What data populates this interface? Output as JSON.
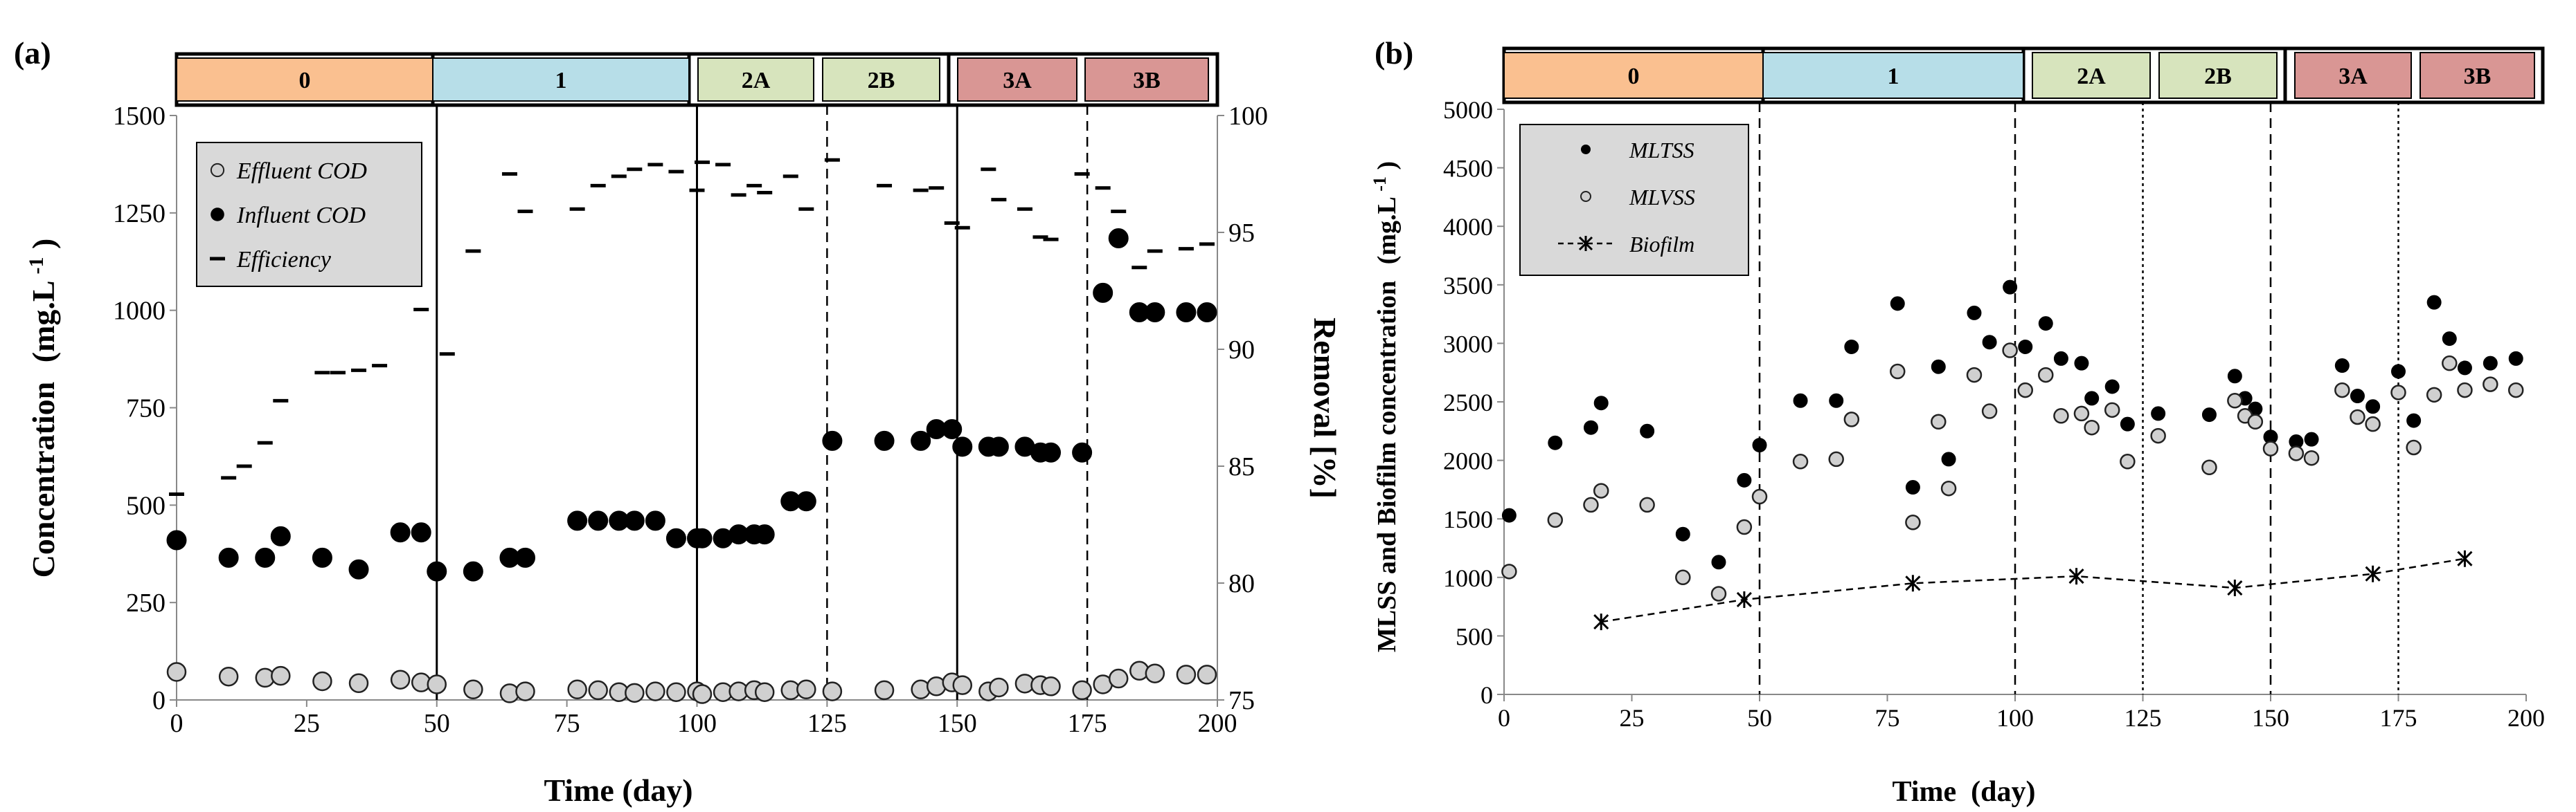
{
  "colors": {
    "phase_0": "#fac090",
    "phase_1": "#b7dee8",
    "phase_2": "#d7e4bd",
    "phase_3": "#d99694",
    "marker_dark": "#000000",
    "marker_light": "#d0d0d0"
  },
  "chart_data": [
    {
      "panel_label": "(a)",
      "type": "scatter",
      "title": "",
      "xlabel": "Time (day)",
      "ylabel": "Concentration",
      "ylabel_units": "(mg.L",
      "ylabel_sup": "-1",
      "ylabel_close": ")",
      "y2label": "Removal [%]",
      "xlim": [
        0,
        200
      ],
      "ylim": [
        0,
        1500
      ],
      "y2lim": [
        75,
        100
      ],
      "x_ticks": [
        "0",
        "25",
        "50",
        "75",
        "100",
        "125",
        "150",
        "175",
        "200"
      ],
      "y_ticks": [
        "0",
        "250",
        "500",
        "750",
        "1000",
        "1250",
        "1500"
      ],
      "y2_ticks": [
        "75",
        "80",
        "85",
        "90",
        "95",
        "100"
      ],
      "phases": [
        {
          "label": "0",
          "color": "phase_0"
        },
        {
          "label": "1",
          "color": "phase_1"
        },
        {
          "label": "2A",
          "color": "phase_2"
        },
        {
          "label": "2B",
          "color": "phase_2"
        },
        {
          "label": "3A",
          "color": "phase_3"
        },
        {
          "label": "3B",
          "color": "phase_3"
        }
      ],
      "phase_lines": [
        {
          "x": 50,
          "style": "solid"
        },
        {
          "x": 100,
          "style": "solid"
        },
        {
          "x": 125,
          "style": "dashed"
        },
        {
          "x": 150,
          "style": "solid"
        },
        {
          "x": 175,
          "style": "dashed"
        }
      ],
      "legend_position": "top-left",
      "series": [
        {
          "name": "Effluent COD",
          "marker": "circle-light",
          "axis": "left",
          "x": [
            0,
            10,
            17,
            20,
            28,
            35,
            43,
            47,
            50,
            57,
            64,
            67,
            77,
            81,
            85,
            88,
            92,
            96,
            100,
            101,
            105,
            108,
            111,
            113,
            118,
            121,
            126,
            136,
            143,
            146,
            149,
            151,
            156,
            158,
            163,
            166,
            168,
            174,
            178,
            181,
            185,
            188,
            194,
            198
          ],
          "y": [
            72,
            60,
            57,
            62,
            48,
            43,
            52,
            45,
            40,
            27,
            17,
            22,
            27,
            25,
            20,
            18,
            22,
            20,
            22,
            15,
            20,
            22,
            25,
            20,
            25,
            27,
            22,
            25,
            27,
            35,
            45,
            38,
            22,
            32,
            42,
            38,
            35,
            25,
            40,
            55,
            75,
            68,
            65,
            65
          ]
        },
        {
          "name": "Influent COD",
          "marker": "circle-dark",
          "axis": "left",
          "x": [
            0,
            10,
            17,
            20,
            28,
            35,
            43,
            47,
            50,
            57,
            64,
            67,
            77,
            81,
            85,
            88,
            92,
            96,
            100,
            101,
            105,
            108,
            111,
            113,
            118,
            121,
            126,
            136,
            143,
            146,
            149,
            151,
            156,
            158,
            163,
            166,
            168,
            174,
            178,
            181,
            185,
            188,
            194,
            198
          ],
          "y": [
            410,
            365,
            365,
            420,
            365,
            335,
            430,
            430,
            330,
            330,
            365,
            365,
            460,
            460,
            460,
            460,
            460,
            415,
            415,
            415,
            415,
            425,
            425,
            425,
            510,
            510,
            665,
            665,
            665,
            695,
            695,
            650,
            650,
            650,
            650,
            635,
            635,
            635,
            1045,
            1185,
            995,
            995,
            995,
            995
          ]
        },
        {
          "name": "Efficiency",
          "marker": "dash",
          "axis": "right",
          "x": [
            0,
            10,
            13,
            17,
            20,
            28,
            31,
            35,
            39,
            47,
            52,
            57,
            64,
            67,
            77,
            81,
            85,
            88,
            92,
            96,
            100,
            101,
            105,
            108,
            111,
            113,
            118,
            121,
            126,
            136,
            143,
            146,
            149,
            151,
            156,
            158,
            163,
            166,
            168,
            174,
            178,
            181,
            185,
            188,
            194,
            198
          ],
          "y": [
            83.8,
            84.5,
            85.0,
            86.0,
            87.8,
            89.0,
            89.0,
            89.1,
            89.3,
            91.7,
            89.8,
            94.2,
            97.5,
            95.9,
            96.0,
            97.0,
            97.4,
            97.7,
            97.9,
            97.6,
            96.8,
            98.0,
            97.9,
            96.6,
            97.0,
            96.7,
            97.4,
            96.0,
            98.1,
            97.0,
            96.8,
            96.9,
            95.4,
            95.2,
            97.7,
            96.4,
            96.0,
            94.8,
            94.7,
            97.5,
            96.9,
            95.9,
            93.5,
            94.2,
            94.3,
            94.5
          ]
        }
      ],
      "legend": [
        "Effluent COD",
        "Influent COD",
        "Efficiency"
      ]
    },
    {
      "panel_label": "(b)",
      "type": "scatter",
      "title": "",
      "xlabel": "Time  (day)",
      "ylabel": "MLSS and Biofilm concentration",
      "ylabel_units": "(mg.L",
      "ylabel_sup": "-1",
      "ylabel_close": ")",
      "xlim": [
        0,
        200
      ],
      "ylim": [
        0,
        5000
      ],
      "x_ticks": [
        "0",
        "25",
        "50",
        "75",
        "100",
        "125",
        "150",
        "175",
        "200"
      ],
      "y_ticks": [
        "0",
        "500",
        "1000",
        "1500",
        "2000",
        "2500",
        "3000",
        "3500",
        "4000",
        "4500",
        "5000"
      ],
      "phases": [
        {
          "label": "0",
          "color": "phase_0"
        },
        {
          "label": "1",
          "color": "phase_1"
        },
        {
          "label": "2A",
          "color": "phase_2"
        },
        {
          "label": "2B",
          "color": "phase_2"
        },
        {
          "label": "3A",
          "color": "phase_3"
        },
        {
          "label": "3B",
          "color": "phase_3"
        }
      ],
      "phase_lines": [
        {
          "x": 50,
          "style": "dashed"
        },
        {
          "x": 100,
          "style": "dashed"
        },
        {
          "x": 125,
          "style": "dotted"
        },
        {
          "x": 150,
          "style": "dashed"
        },
        {
          "x": 175,
          "style": "dotted"
        }
      ],
      "legend_position": "top-left",
      "series": [
        {
          "name": "MLTSS",
          "marker": "circle-dark",
          "x": [
            1,
            10,
            17,
            19,
            28,
            35,
            42,
            47,
            50,
            58,
            65,
            68,
            77,
            80,
            85,
            87,
            92,
            95,
            99,
            102,
            106,
            109,
            113,
            115,
            119,
            122,
            128,
            138,
            143,
            145,
            147,
            150,
            155,
            158,
            164,
            167,
            170,
            175,
            178,
            182,
            185,
            188,
            193,
            198
          ],
          "y": [
            1530,
            2150,
            2280,
            2490,
            2250,
            1370,
            1130,
            1830,
            2130,
            2510,
            2510,
            2970,
            3340,
            1770,
            2800,
            2010,
            3260,
            3010,
            3480,
            2970,
            3170,
            2870,
            2830,
            2530,
            2630,
            2310,
            2400,
            2390,
            2720,
            2530,
            2440,
            2200,
            2160,
            2180,
            2810,
            2550,
            2460,
            2760,
            2340,
            3350,
            3040,
            2790,
            2830,
            2870
          ]
        },
        {
          "name": "MLVSS",
          "marker": "circle-light",
          "x": [
            1,
            10,
            17,
            19,
            28,
            35,
            42,
            47,
            50,
            58,
            65,
            68,
            77,
            80,
            85,
            87,
            92,
            95,
            99,
            102,
            106,
            109,
            113,
            115,
            119,
            122,
            128,
            138,
            143,
            145,
            147,
            150,
            155,
            158,
            164,
            167,
            170,
            175,
            178,
            182,
            185,
            188,
            193,
            198
          ],
          "y": [
            1050,
            1490,
            1620,
            1740,
            1620,
            1000,
            860,
            1430,
            1690,
            1990,
            2010,
            2350,
            2760,
            1470,
            2330,
            1760,
            2730,
            2420,
            2940,
            2600,
            2730,
            2380,
            2400,
            2280,
            2430,
            1990,
            2210,
            1940,
            2510,
            2380,
            2330,
            2100,
            2060,
            2020,
            2600,
            2370,
            2310,
            2580,
            2110,
            2560,
            2830,
            2600,
            2650,
            2600
          ]
        },
        {
          "name": "Biofilm",
          "marker": "star",
          "line": "dashed",
          "x": [
            19,
            47,
            80,
            112,
            143,
            170,
            188
          ],
          "y": [
            620,
            810,
            950,
            1010,
            910,
            1030,
            1160
          ]
        }
      ],
      "legend": [
        "MLTSS",
        "MLVSS",
        "Biofilm"
      ]
    }
  ]
}
